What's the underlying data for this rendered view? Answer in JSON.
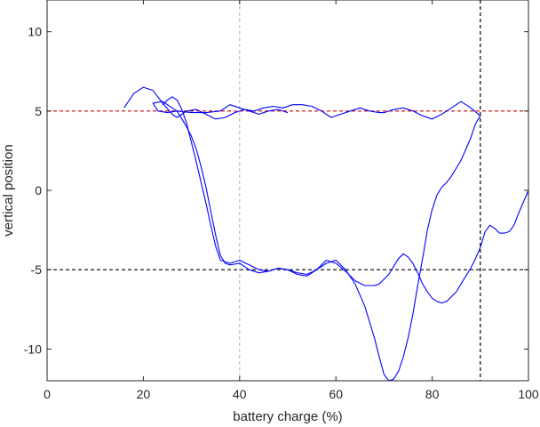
{
  "chart_data": {
    "type": "line",
    "xlabel": "battery charge (%)",
    "ylabel": "vertical position",
    "xlim": [
      0,
      100
    ],
    "ylim": [
      -12,
      12
    ],
    "x_ticks": [
      0,
      20,
      40,
      60,
      80,
      100
    ],
    "y_ticks": [
      -10,
      -5,
      0,
      5,
      10
    ],
    "grid": false,
    "colors": {
      "series": "#0000ff",
      "ref_upper": "#cc0000",
      "ref_lower": "#000000",
      "vline_dark": "#000000",
      "vline_light": "#bbbbbb",
      "axis": "#262626"
    },
    "reference_lines": [
      {
        "orientation": "horizontal",
        "value": 5,
        "style": "dashed",
        "color": "#cc0000"
      },
      {
        "orientation": "horizontal",
        "value": -5,
        "style": "dashed",
        "color": "#000000"
      },
      {
        "orientation": "vertical",
        "value": 40,
        "style": "dashed",
        "color": "#bbbbbb"
      },
      {
        "orientation": "vertical",
        "value": 90,
        "style": "dashed",
        "color": "#000000"
      }
    ],
    "series": [
      {
        "x": [
          16,
          18,
          20,
          22,
          24,
          26,
          27,
          29,
          31,
          33,
          35,
          37,
          39,
          41,
          43,
          45,
          47,
          49,
          51,
          53,
          55,
          57,
          59,
          61,
          63,
          65,
          67,
          69,
          70,
          72,
          74,
          76,
          78,
          80,
          82,
          84,
          86,
          88,
          90
        ],
        "y": [
          5.2,
          6.1,
          6.5,
          6.3,
          5.5,
          4.8,
          4.6,
          5.0,
          5.1,
          4.8,
          4.5,
          4.6,
          4.9,
          5.1,
          5.0,
          5.2,
          5.3,
          5.2,
          5.4,
          5.4,
          5.3,
          5.0,
          4.6,
          4.8,
          5.0,
          5.2,
          5.0,
          4.9,
          4.9,
          5.1,
          5.2,
          5.0,
          4.7,
          4.5,
          4.8,
          5.2,
          5.6,
          5.2,
          4.7
        ]
      },
      {
        "x": [
          90,
          89,
          88,
          86,
          84,
          83,
          82,
          81,
          80,
          79,
          78,
          77,
          76,
          75,
          74,
          73,
          72,
          71,
          70,
          69,
          68,
          66,
          64,
          62,
          60,
          58,
          56,
          54,
          52,
          50,
          48,
          46,
          44,
          42,
          40,
          38,
          36,
          35,
          34,
          33,
          32,
          31,
          30,
          29,
          28,
          27,
          26,
          25,
          24
        ],
        "y": [
          4.7,
          4.2,
          3.3,
          1.9,
          0.9,
          0.5,
          0.2,
          -0.3,
          -1.2,
          -2.5,
          -4.3,
          -6.0,
          -7.8,
          -9.3,
          -10.5,
          -11.4,
          -11.9,
          -12.0,
          -11.6,
          -10.5,
          -9.3,
          -7.3,
          -5.9,
          -5.0,
          -4.4,
          -4.6,
          -5.0,
          -5.4,
          -5.3,
          -5.0,
          -4.9,
          -5.1,
          -5.0,
          -4.7,
          -4.4,
          -4.6,
          -4.4,
          -3.5,
          -2.2,
          -0.8,
          0.5,
          1.8,
          3.0,
          4.2,
          5.1,
          5.7,
          5.9,
          5.7,
          5.4
        ]
      },
      {
        "x": [
          100,
          99,
          98,
          97,
          96,
          95,
          94,
          93,
          92,
          91,
          90,
          89,
          88,
          87,
          86,
          85,
          84,
          83,
          82,
          81,
          80,
          79,
          78,
          77,
          76,
          75,
          74,
          73,
          72,
          71,
          70,
          69,
          68,
          67,
          66,
          64,
          62,
          60,
          58,
          56,
          54,
          52,
          50,
          48,
          46,
          44,
          42,
          40,
          38,
          37,
          36,
          35,
          34,
          33,
          32,
          31,
          30,
          29,
          28,
          27,
          26,
          24,
          22,
          23,
          25,
          27,
          30,
          33,
          36,
          38,
          40,
          42,
          44,
          46,
          48,
          50
        ],
        "y": [
          0.0,
          -0.7,
          -1.4,
          -2.2,
          -2.6,
          -2.7,
          -2.7,
          -2.4,
          -2.2,
          -2.6,
          -3.6,
          -4.3,
          -4.9,
          -5.4,
          -5.9,
          -6.4,
          -6.7,
          -7.0,
          -7.1,
          -7.0,
          -6.8,
          -6.4,
          -5.9,
          -5.2,
          -4.6,
          -4.2,
          -4.0,
          -4.3,
          -4.8,
          -5.3,
          -5.6,
          -5.9,
          -6.0,
          -6.0,
          -6.0,
          -5.7,
          -5.1,
          -4.6,
          -4.4,
          -5.0,
          -5.3,
          -5.2,
          -5.0,
          -4.9,
          -5.1,
          -5.2,
          -5.0,
          -4.6,
          -4.7,
          -4.6,
          -4.1,
          -2.8,
          -1.3,
          0.2,
          1.5,
          2.6,
          3.4,
          4.0,
          4.5,
          5.0,
          5.2,
          5.6,
          5.5,
          5.0,
          4.9,
          5.0,
          4.9,
          4.9,
          5.0,
          5.4,
          5.2,
          5.0,
          4.8,
          5.0,
          5.1,
          4.9
        ]
      }
    ]
  }
}
